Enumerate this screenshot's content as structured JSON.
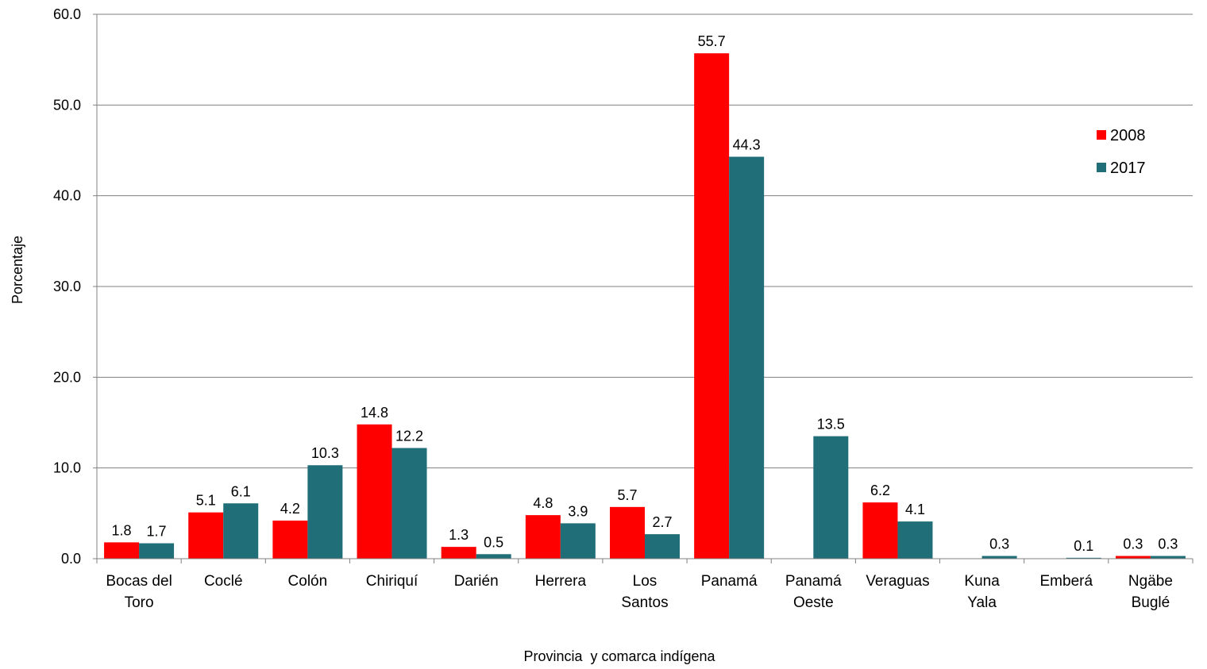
{
  "chart_data": {
    "type": "bar",
    "xlabel": "Provincia  y comarca indígena",
    "ylabel": "Porcentaje",
    "ylim": [
      0,
      60
    ],
    "yticks": [
      "0.0",
      "10.0",
      "20.0",
      "30.0",
      "40.0",
      "50.0",
      "60.0"
    ],
    "grid": true,
    "legend_position": "top-right",
    "categories": [
      [
        "Bocas del",
        "Toro"
      ],
      [
        "Coclé"
      ],
      [
        "Colón"
      ],
      [
        "Chiriquí"
      ],
      [
        "Darién"
      ],
      [
        "Herrera"
      ],
      [
        "Los",
        "Santos"
      ],
      [
        "Panamá"
      ],
      [
        "Panamá",
        "Oeste"
      ],
      [
        "Veraguas"
      ],
      [
        "Kuna",
        "Yala"
      ],
      [
        "Emberá"
      ],
      [
        "Ngäbe",
        "Buglé"
      ]
    ],
    "series": [
      {
        "name": "2008",
        "color": "#ff0000",
        "values": [
          1.8,
          5.1,
          4.2,
          14.8,
          1.3,
          4.8,
          5.7,
          55.7,
          null,
          6.2,
          null,
          null,
          0.3
        ],
        "labels": [
          "1.8",
          "5.1",
          "4.2",
          "14.8",
          "1.3",
          "4.8",
          "5.7",
          "55.7",
          null,
          "6.2",
          null,
          null,
          "0.3"
        ]
      },
      {
        "name": "2017",
        "color": "#1f6e78",
        "values": [
          1.7,
          6.1,
          10.3,
          12.2,
          0.5,
          3.9,
          2.7,
          44.3,
          13.5,
          4.1,
          0.3,
          0.1,
          0.3
        ],
        "labels": [
          "1.7",
          "6.1",
          "10.3",
          "12.2",
          "0.5",
          "3.9",
          "2.7",
          "44.3",
          "13.5",
          "4.1",
          "0.3",
          "0.1",
          "0.3"
        ]
      }
    ]
  }
}
